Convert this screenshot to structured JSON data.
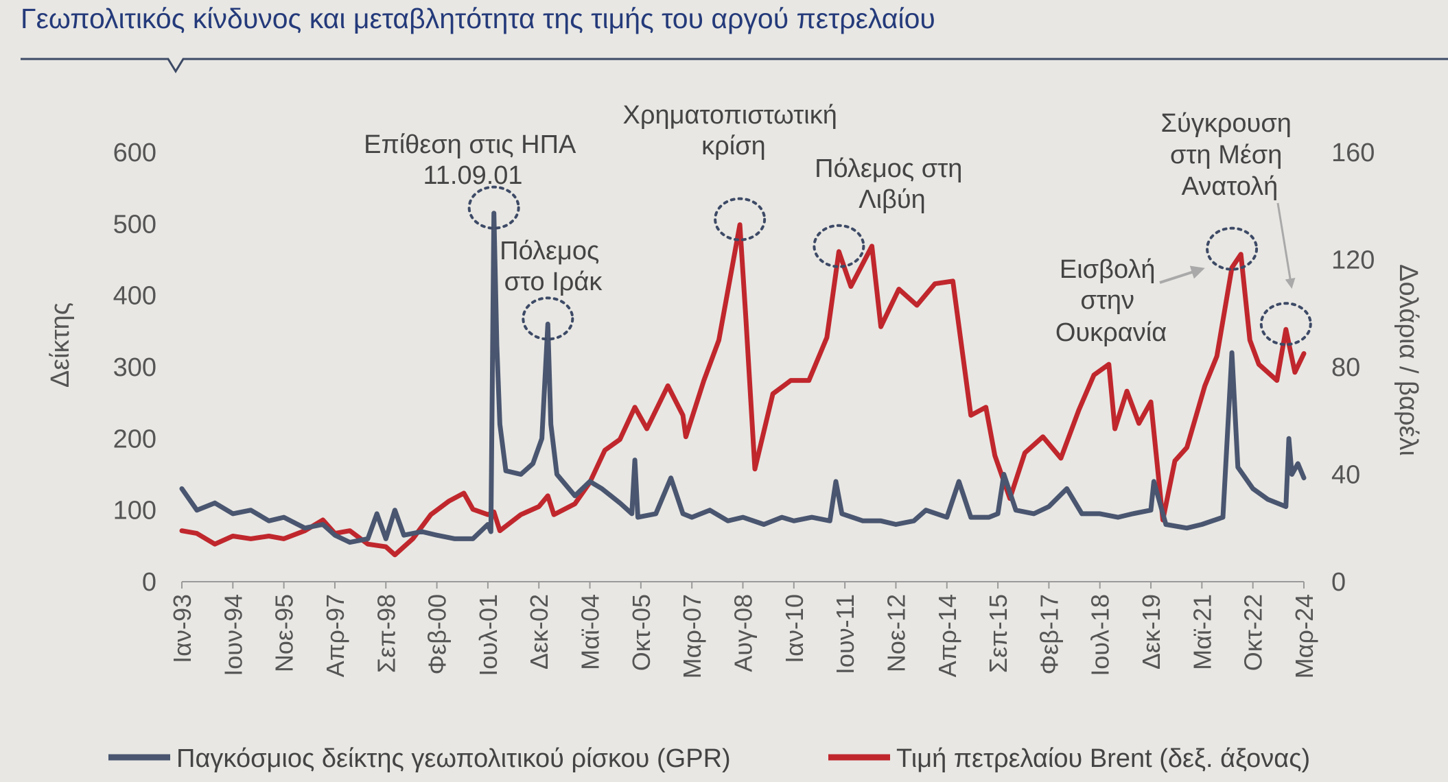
{
  "title": "Γεωπολιτικός κίνδυνος και μεταβλητότητα της τιμής του αργού πετρελαίου",
  "colors": {
    "gpr": "#4a5670",
    "brent": "#c0272d",
    "title": "#243a7a",
    "rule": "#3d4a66",
    "background": "#e8e7e3"
  },
  "chart_data": {
    "type": "line",
    "x_range": [
      "1993-01",
      "2024-03"
    ],
    "y_left": {
      "label": "Δείκτης",
      "ylim": [
        0,
        600
      ],
      "ticks": [
        "0",
        "100",
        "200",
        "300",
        "400",
        "500",
        "600"
      ]
    },
    "y_right": {
      "label": "Δολάρια / βαρέλι",
      "ylim": [
        0,
        160
      ],
      "ticks": [
        "0",
        "40",
        "80",
        "120",
        "160"
      ]
    },
    "x_tick_labels": [
      "Ιαν-93",
      "Ιουν-94",
      "Νοε-95",
      "Απρ-97",
      "Σεπ-98",
      "Φεβ-00",
      "Ιουλ-01",
      "Δεκ-02",
      "Μαϊ-04",
      "Οκτ-05",
      "Μαρ-07",
      "Αυγ-08",
      "Ιαν-10",
      "Ιουν-11",
      "Νοε-12",
      "Απρ-14",
      "Σεπ-15",
      "Φεβ-17",
      "Ιουλ-18",
      "Δεκ-19",
      "Μαϊ-21",
      "Οκτ-22",
      "Μαρ-24"
    ],
    "grid": false,
    "legend_position": "bottom",
    "series": [
      {
        "name": "Παγκόσμιος δείκτης γεωπολιτικού ρίσκου (GPR)",
        "axis": "left",
        "points": [
          [
            "1993-01",
            130
          ],
          [
            "1993-06",
            100
          ],
          [
            "1993-12",
            110
          ],
          [
            "1994-06",
            95
          ],
          [
            "1994-12",
            100
          ],
          [
            "1995-06",
            85
          ],
          [
            "1995-11",
            90
          ],
          [
            "1996-06",
            75
          ],
          [
            "1996-12",
            80
          ],
          [
            "1997-04",
            65
          ],
          [
            "1997-09",
            55
          ],
          [
            "1998-03",
            60
          ],
          [
            "1998-06",
            95
          ],
          [
            "1998-09",
            60
          ],
          [
            "1998-12",
            100
          ],
          [
            "1999-03",
            65
          ],
          [
            "1999-09",
            70
          ],
          [
            "2000-02",
            65
          ],
          [
            "2000-08",
            60
          ],
          [
            "2001-02",
            60
          ],
          [
            "2001-07",
            80
          ],
          [
            "2001-08",
            70
          ],
          [
            "2001-09",
            515
          ],
          [
            "2001-10",
            330
          ],
          [
            "2001-11",
            220
          ],
          [
            "2002-01",
            155
          ],
          [
            "2002-06",
            150
          ],
          [
            "2002-10",
            165
          ],
          [
            "2003-01",
            200
          ],
          [
            "2003-03",
            360
          ],
          [
            "2003-04",
            220
          ],
          [
            "2003-06",
            150
          ],
          [
            "2003-12",
            120
          ],
          [
            "2004-05",
            140
          ],
          [
            "2004-09",
            130
          ],
          [
            "2005-03",
            110
          ],
          [
            "2005-07",
            95
          ],
          [
            "2005-08",
            170
          ],
          [
            "2005-09",
            90
          ],
          [
            "2006-03",
            95
          ],
          [
            "2006-08",
            145
          ],
          [
            "2006-12",
            95
          ],
          [
            "2007-03",
            90
          ],
          [
            "2007-09",
            100
          ],
          [
            "2008-03",
            85
          ],
          [
            "2008-08",
            90
          ],
          [
            "2009-03",
            80
          ],
          [
            "2009-09",
            90
          ],
          [
            "2010-01",
            85
          ],
          [
            "2010-07",
            90
          ],
          [
            "2011-01",
            85
          ],
          [
            "2011-03",
            140
          ],
          [
            "2011-05",
            95
          ],
          [
            "2011-12",
            85
          ],
          [
            "2012-06",
            85
          ],
          [
            "2012-11",
            80
          ],
          [
            "2013-05",
            85
          ],
          [
            "2013-09",
            100
          ],
          [
            "2014-04",
            90
          ],
          [
            "2014-08",
            140
          ],
          [
            "2014-12",
            90
          ],
          [
            "2015-06",
            90
          ],
          [
            "2015-09",
            95
          ],
          [
            "2015-11",
            150
          ],
          [
            "2016-03",
            100
          ],
          [
            "2016-09",
            95
          ],
          [
            "2017-02",
            105
          ],
          [
            "2017-08",
            130
          ],
          [
            "2018-01",
            95
          ],
          [
            "2018-07",
            95
          ],
          [
            "2019-01",
            90
          ],
          [
            "2019-06",
            95
          ],
          [
            "2019-12",
            100
          ],
          [
            "2020-01",
            140
          ],
          [
            "2020-05",
            80
          ],
          [
            "2020-12",
            75
          ],
          [
            "2021-05",
            80
          ],
          [
            "2021-12",
            90
          ],
          [
            "2022-03",
            320
          ],
          [
            "2022-05",
            160
          ],
          [
            "2022-10",
            130
          ],
          [
            "2023-03",
            115
          ],
          [
            "2023-09",
            105
          ],
          [
            "2023-10",
            200
          ],
          [
            "2023-11",
            150
          ],
          [
            "2024-01",
            165
          ],
          [
            "2024-03",
            145
          ]
        ]
      },
      {
        "name": "Τιμή πετρελαίου Brent (δεξ. άξονας)",
        "axis": "right",
        "points": [
          [
            "1993-01",
            19
          ],
          [
            "1993-06",
            18
          ],
          [
            "1993-12",
            14
          ],
          [
            "1994-06",
            17
          ],
          [
            "1994-12",
            16
          ],
          [
            "1995-06",
            17
          ],
          [
            "1995-11",
            16
          ],
          [
            "1996-06",
            19
          ],
          [
            "1996-12",
            23
          ],
          [
            "1997-04",
            18
          ],
          [
            "1997-09",
            19
          ],
          [
            "1998-03",
            14
          ],
          [
            "1998-09",
            13
          ],
          [
            "1998-12",
            10
          ],
          [
            "1999-06",
            16
          ],
          [
            "1999-12",
            25
          ],
          [
            "2000-06",
            30
          ],
          [
            "2000-11",
            33
          ],
          [
            "2001-02",
            27
          ],
          [
            "2001-07",
            25
          ],
          [
            "2001-09",
            26
          ],
          [
            "2001-11",
            19
          ],
          [
            "2002-06",
            25
          ],
          [
            "2002-12",
            28
          ],
          [
            "2003-03",
            32
          ],
          [
            "2003-05",
            25
          ],
          [
            "2003-12",
            29
          ],
          [
            "2004-05",
            37
          ],
          [
            "2004-10",
            49
          ],
          [
            "2005-03",
            53
          ],
          [
            "2005-08",
            65
          ],
          [
            "2005-12",
            57
          ],
          [
            "2006-07",
            73
          ],
          [
            "2006-12",
            62
          ],
          [
            "2007-01",
            54
          ],
          [
            "2007-07",
            75
          ],
          [
            "2007-12",
            90
          ],
          [
            "2008-07",
            133
          ],
          [
            "2008-09",
            98
          ],
          [
            "2008-12",
            42
          ],
          [
            "2009-06",
            70
          ],
          [
            "2009-12",
            75
          ],
          [
            "2010-06",
            75
          ],
          [
            "2010-12",
            91
          ],
          [
            "2011-04",
            123
          ],
          [
            "2011-08",
            110
          ],
          [
            "2012-03",
            125
          ],
          [
            "2012-06",
            95
          ],
          [
            "2012-12",
            109
          ],
          [
            "2013-06",
            103
          ],
          [
            "2013-12",
            111
          ],
          [
            "2014-06",
            112
          ],
          [
            "2014-12",
            62
          ],
          [
            "2015-05",
            65
          ],
          [
            "2015-08",
            47
          ],
          [
            "2016-01",
            31
          ],
          [
            "2016-06",
            48
          ],
          [
            "2016-12",
            54
          ],
          [
            "2017-06",
            46
          ],
          [
            "2017-12",
            64
          ],
          [
            "2018-05",
            77
          ],
          [
            "2018-10",
            81
          ],
          [
            "2018-12",
            57
          ],
          [
            "2019-04",
            71
          ],
          [
            "2019-08",
            59
          ],
          [
            "2019-12",
            67
          ],
          [
            "2020-04",
            23
          ],
          [
            "2020-08",
            45
          ],
          [
            "2020-12",
            50
          ],
          [
            "2021-06",
            73
          ],
          [
            "2021-10",
            84
          ],
          [
            "2022-03",
            117
          ],
          [
            "2022-06",
            122
          ],
          [
            "2022-09",
            90
          ],
          [
            "2022-12",
            81
          ],
          [
            "2023-06",
            75
          ],
          [
            "2023-09",
            94
          ],
          [
            "2023-12",
            78
          ],
          [
            "2024-03",
            85
          ]
        ]
      }
    ],
    "annotations": [
      {
        "lines": [
          "Επίθεση στις ΗΠΑ",
          "11.09.01"
        ]
      },
      {
        "lines": [
          "Πόλεμος",
          "στο Ιράκ"
        ]
      },
      {
        "lines": [
          "Χρηματοπιστωτική",
          "κρίση"
        ]
      },
      {
        "lines": [
          "Πόλεμος στη",
          "Λιβύη"
        ]
      },
      {
        "lines": [
          "Εισβολή",
          "στην",
          "Ουκρανία"
        ]
      },
      {
        "lines": [
          "Σύγκρουση",
          "στη Μέση",
          "Ανατολή"
        ]
      }
    ]
  }
}
